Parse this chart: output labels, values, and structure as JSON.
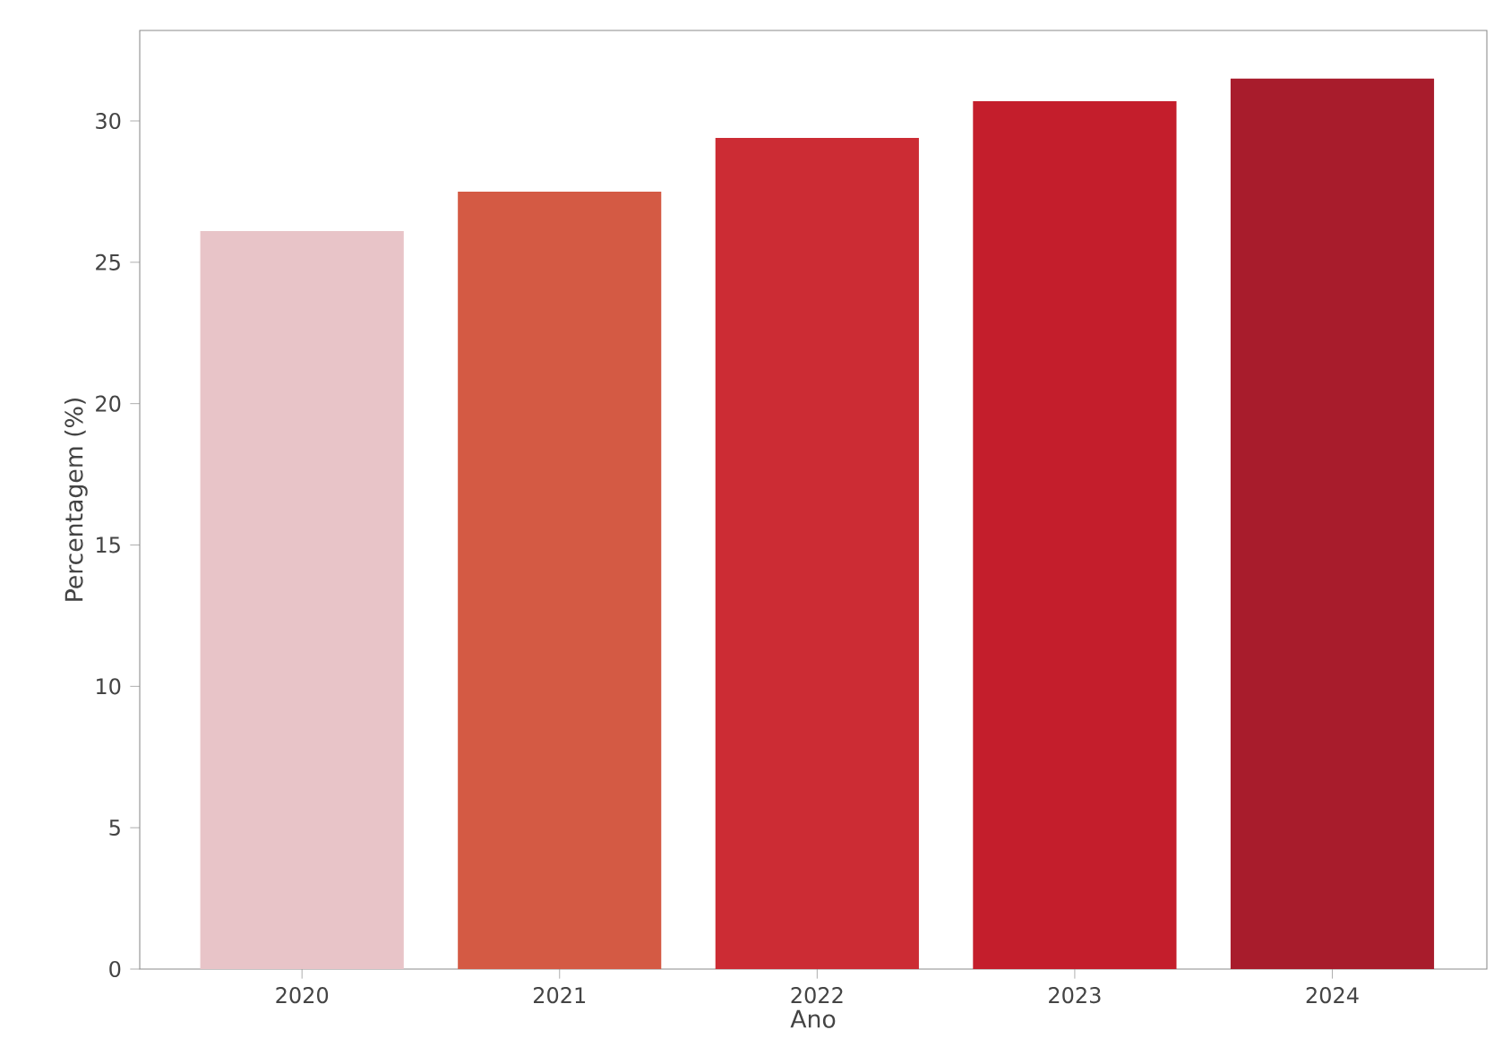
{
  "chart_data": {
    "type": "bar",
    "xlabel": "Ano",
    "ylabel": "Percentagem (%)",
    "categories": [
      "2020",
      "2021",
      "2022",
      "2023",
      "2024"
    ],
    "values": [
      26.1,
      27.5,
      29.4,
      30.7,
      31.5
    ],
    "colors": [
      "#e8c4c8",
      "#d45a44",
      "#cc2c34",
      "#c41e2c",
      "#a81c2c"
    ],
    "ylim": [
      0,
      33.2
    ],
    "yticks": [
      0,
      5,
      10,
      15,
      20,
      25,
      30
    ]
  }
}
